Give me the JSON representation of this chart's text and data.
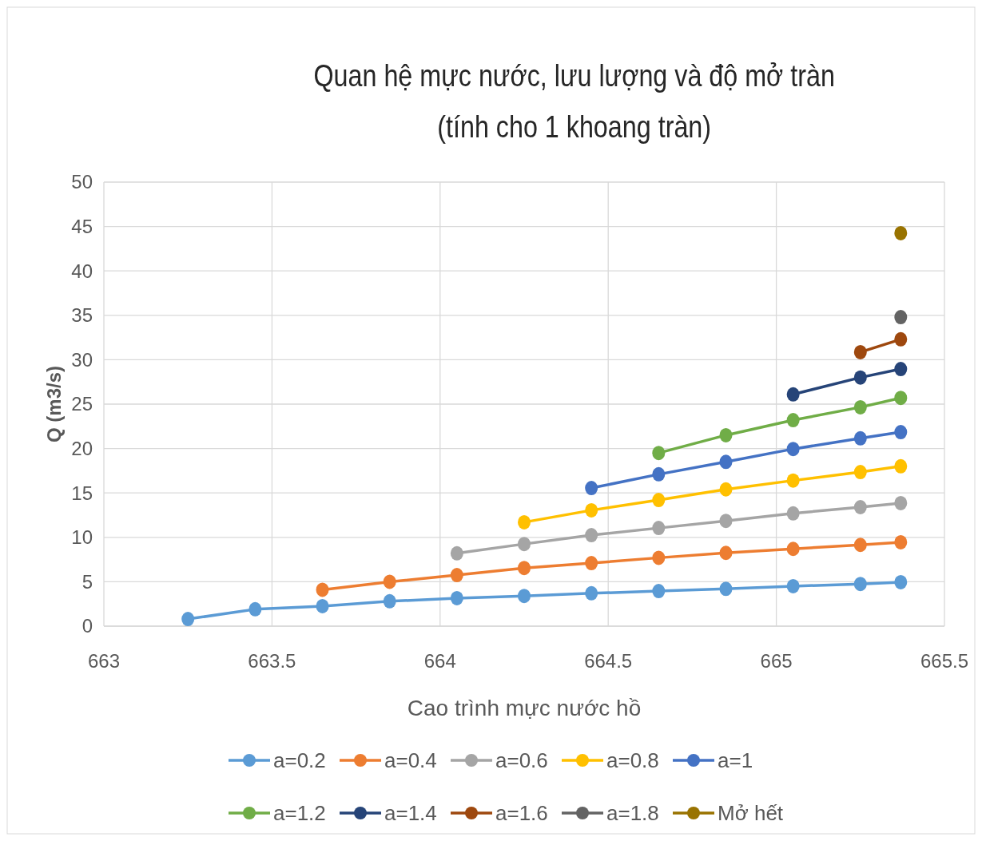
{
  "chart_data": {
    "type": "line",
    "title": "Quan hệ mực nước, lưu lượng và độ mở tràn\n(tính cho 1 khoang tràn)",
    "xlabel": "Cao trình mực nước hồ",
    "ylabel": "Q (m3/s)",
    "xlim": [
      663,
      665.5
    ],
    "xticks": [
      663,
      663.5,
      664,
      664.5,
      665,
      665.5
    ],
    "ylim": [
      0,
      50
    ],
    "yticks": [
      0,
      5,
      10,
      15,
      20,
      25,
      30,
      35,
      40,
      45,
      50
    ],
    "grid": true,
    "legend": "bottom",
    "marker": "circle",
    "line_style": "solid",
    "series": [
      {
        "name": "a=0.2",
        "color": "#5b9bd5",
        "x": [
          663.25,
          663.45,
          663.65,
          663.85,
          664.05,
          664.25,
          664.45,
          664.65,
          664.85,
          665.05,
          665.25,
          665.37
        ],
        "values": [
          0.8,
          1.9,
          2.25,
          2.8,
          3.15,
          3.4,
          3.7,
          3.95,
          4.2,
          4.5,
          4.75,
          4.95
        ]
      },
      {
        "name": "a=0.4",
        "color": "#ed7d31",
        "x": [
          663.65,
          663.85,
          664.05,
          664.25,
          664.45,
          664.65,
          664.85,
          665.05,
          665.25,
          665.37
        ],
        "values": [
          4.1,
          5.0,
          5.75,
          6.55,
          7.1,
          7.7,
          8.25,
          8.7,
          9.15,
          9.45
        ]
      },
      {
        "name": "a=0.6",
        "color": "#a5a5a5",
        "x": [
          664.05,
          664.25,
          664.45,
          664.65,
          664.85,
          665.05,
          665.25,
          665.37
        ],
        "values": [
          8.2,
          9.25,
          10.25,
          11.05,
          11.85,
          12.7,
          13.4,
          13.85
        ]
      },
      {
        "name": "a=0.8",
        "color": "#ffc000",
        "x": [
          664.25,
          664.45,
          664.65,
          664.85,
          665.05,
          665.25,
          665.37
        ],
        "values": [
          11.7,
          13.05,
          14.2,
          15.4,
          16.4,
          17.35,
          18.0
        ]
      },
      {
        "name": "a=1",
        "color": "#4472c4",
        "x": [
          664.45,
          664.65,
          664.85,
          665.05,
          665.25,
          665.37
        ],
        "values": [
          15.55,
          17.1,
          18.5,
          19.95,
          21.15,
          21.85
        ]
      },
      {
        "name": "a=1.2",
        "color": "#70ad47",
        "x": [
          664.65,
          664.85,
          665.05,
          665.25,
          665.37
        ],
        "values": [
          19.5,
          21.5,
          23.2,
          24.65,
          25.7
        ]
      },
      {
        "name": "a=1.4",
        "color": "#264478",
        "x": [
          665.05,
          665.25,
          665.37
        ],
        "values": [
          26.1,
          28.0,
          28.95
        ]
      },
      {
        "name": "a=1.6",
        "color": "#9e480e",
        "x": [
          665.25,
          665.37
        ],
        "values": [
          30.85,
          32.3
        ]
      },
      {
        "name": "a=1.8",
        "color": "#636363",
        "x": [
          665.37
        ],
        "values": [
          34.8
        ]
      },
      {
        "name": "Mở hết",
        "color": "#997300",
        "x": [
          665.37
        ],
        "values": [
          44.25
        ]
      }
    ]
  }
}
